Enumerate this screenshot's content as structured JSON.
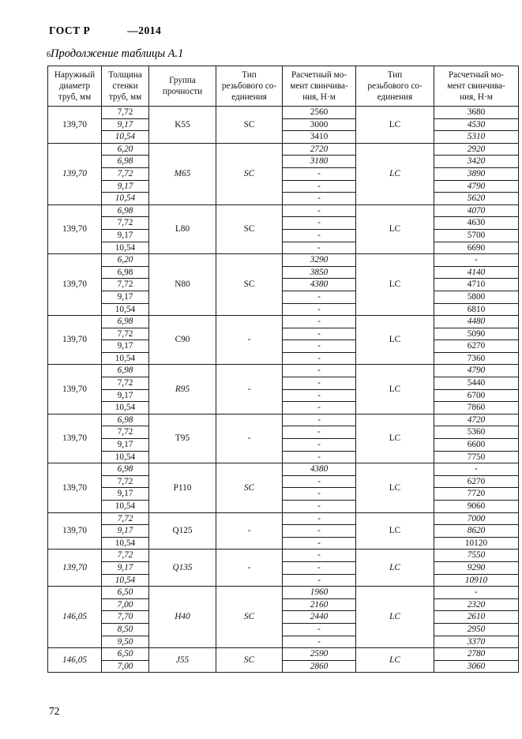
{
  "page": {
    "gost_label": "ГОСТ Р",
    "year_label": "—2014",
    "table_caption_prefix": "6",
    "table_caption": "Продолжение таблицы А.1",
    "page_number": "72"
  },
  "table": {
    "headers": [
      "Наружный\nдиаметр\nтруб, мм",
      "Толщина\nстенки\nтруб, мм",
      "Группа\nпрочности",
      "Тип\nрезьбового со-\nединения",
      "Расчетный мо-\nмент свинчива-\nния, Н·м",
      "Тип\nрезьбового со-\nединения",
      "Расчетный мо-\nмент свинчива-\nния, Н·м"
    ],
    "groups": [
      {
        "diameter": {
          "v": "139,70"
        },
        "grade": {
          "v": "K55"
        },
        "conn_type_sc": {
          "v": "SC"
        },
        "conn_type_lc": {
          "v": "LC"
        },
        "rows": [
          {
            "thickness": {
              "v": "7,72"
            },
            "torque_sc": {
              "v": "2560"
            },
            "torque_lc": {
              "v": "3680"
            }
          },
          {
            "thickness": {
              "v": "9,17",
              "i": 1
            },
            "torque_sc": {
              "v": "3000"
            },
            "torque_lc": {
              "v": "4530",
              "i": 1
            }
          },
          {
            "thickness": {
              "v": "10,54",
              "i": 1
            },
            "torque_sc": {
              "v": "3410"
            },
            "torque_lc": {
              "v": "5310",
              "i": 1
            }
          }
        ]
      },
      {
        "diameter": {
          "v": "139,70",
          "i": 1
        },
        "grade": {
          "v": "M65",
          "i": 1
        },
        "conn_type_sc": {
          "v": "SC",
          "i": 1
        },
        "conn_type_lc": {
          "v": "LC",
          "i": 1
        },
        "rows": [
          {
            "thickness": {
              "v": "6,20",
              "i": 1
            },
            "torque_sc": {
              "v": "2720",
              "i": 1
            },
            "torque_lc": {
              "v": "2920",
              "i": 1
            }
          },
          {
            "thickness": {
              "v": "6,98",
              "i": 1
            },
            "torque_sc": {
              "v": "3180",
              "i": 1
            },
            "torque_lc": {
              "v": "3420",
              "i": 1
            }
          },
          {
            "thickness": {
              "v": "7,72",
              "i": 1
            },
            "torque_sc": {
              "v": "-",
              "i": 1
            },
            "torque_lc": {
              "v": "3890",
              "i": 1
            }
          },
          {
            "thickness": {
              "v": "9,17",
              "i": 1
            },
            "torque_sc": {
              "v": "-",
              "i": 1
            },
            "torque_lc": {
              "v": "4790",
              "i": 1
            }
          },
          {
            "thickness": {
              "v": "10,54",
              "i": 1
            },
            "torque_sc": {
              "v": "-",
              "i": 1
            },
            "torque_lc": {
              "v": "5620",
              "i": 1
            }
          }
        ]
      },
      {
        "diameter": {
          "v": "139,70"
        },
        "grade": {
          "v": "L80"
        },
        "conn_type_sc": {
          "v": "SC"
        },
        "conn_type_lc": {
          "v": "LC"
        },
        "rows": [
          {
            "thickness": {
              "v": "6,98",
              "i": 1
            },
            "torque_sc": {
              "v": "-"
            },
            "torque_lc": {
              "v": "4070",
              "i": 1
            }
          },
          {
            "thickness": {
              "v": "7,72"
            },
            "torque_sc": {
              "v": "-"
            },
            "torque_lc": {
              "v": "4630"
            }
          },
          {
            "thickness": {
              "v": "9,17"
            },
            "torque_sc": {
              "v": "-"
            },
            "torque_lc": {
              "v": "5700"
            }
          },
          {
            "thickness": {
              "v": "10,54"
            },
            "torque_sc": {
              "v": "-"
            },
            "torque_lc": {
              "v": "6690"
            }
          }
        ]
      },
      {
        "diameter": {
          "v": "139,70"
        },
        "grade": {
          "v": "N80"
        },
        "conn_type_sc": {
          "v": "SC"
        },
        "conn_type_lc": {
          "v": "LC"
        },
        "rows": [
          {
            "thickness": {
              "v": "6,20",
              "i": 1
            },
            "torque_sc": {
              "v": "3290",
              "i": 1
            },
            "torque_lc": {
              "v": "-"
            }
          },
          {
            "thickness": {
              "v": "6,98"
            },
            "torque_sc": {
              "v": "3850",
              "i": 1
            },
            "torque_lc": {
              "v": "4140",
              "i": 1
            }
          },
          {
            "thickness": {
              "v": "7,72"
            },
            "torque_sc": {
              "v": "4380",
              "i": 1
            },
            "torque_lc": {
              "v": "4710"
            }
          },
          {
            "thickness": {
              "v": "9,17"
            },
            "torque_sc": {
              "v": "-"
            },
            "torque_lc": {
              "v": "5800"
            }
          },
          {
            "thickness": {
              "v": "10,54"
            },
            "torque_sc": {
              "v": "-"
            },
            "torque_lc": {
              "v": "6810"
            }
          }
        ]
      },
      {
        "diameter": {
          "v": "139,70"
        },
        "grade": {
          "v": "C90"
        },
        "conn_type_sc": {
          "v": "-"
        },
        "conn_type_lc": {
          "v": "LC"
        },
        "rows": [
          {
            "thickness": {
              "v": "6,98",
              "i": 1
            },
            "torque_sc": {
              "v": "-"
            },
            "torque_lc": {
              "v": "4480",
              "i": 1
            }
          },
          {
            "thickness": {
              "v": "7,72"
            },
            "torque_sc": {
              "v": "-"
            },
            "torque_lc": {
              "v": "5090"
            }
          },
          {
            "thickness": {
              "v": "9,17"
            },
            "torque_sc": {
              "v": "-"
            },
            "torque_lc": {
              "v": "6270"
            }
          },
          {
            "thickness": {
              "v": "10,54"
            },
            "torque_sc": {
              "v": "-"
            },
            "torque_lc": {
              "v": "7360"
            }
          }
        ]
      },
      {
        "diameter": {
          "v": "139,70"
        },
        "grade": {
          "v": "R95",
          "i": 1
        },
        "conn_type_sc": {
          "v": "-"
        },
        "conn_type_lc": {
          "v": "LC"
        },
        "rows": [
          {
            "thickness": {
              "v": "6,98",
              "i": 1
            },
            "torque_sc": {
              "v": "-"
            },
            "torque_lc": {
              "v": "4790",
              "i": 1
            }
          },
          {
            "thickness": {
              "v": "7,72"
            },
            "torque_sc": {
              "v": "-"
            },
            "torque_lc": {
              "v": "5440"
            }
          },
          {
            "thickness": {
              "v": "9,17"
            },
            "torque_sc": {
              "v": "-"
            },
            "torque_lc": {
              "v": "6700"
            }
          },
          {
            "thickness": {
              "v": "10,54"
            },
            "torque_sc": {
              "v": "-"
            },
            "torque_lc": {
              "v": "7860"
            }
          }
        ]
      },
      {
        "diameter": {
          "v": "139,70"
        },
        "grade": {
          "v": "T95"
        },
        "conn_type_sc": {
          "v": "-"
        },
        "conn_type_lc": {
          "v": "LC"
        },
        "rows": [
          {
            "thickness": {
              "v": "6,98",
              "i": 1
            },
            "torque_sc": {
              "v": "-"
            },
            "torque_lc": {
              "v": "4720",
              "i": 1
            }
          },
          {
            "thickness": {
              "v": "7,72"
            },
            "torque_sc": {
              "v": "-"
            },
            "torque_lc": {
              "v": "5360"
            }
          },
          {
            "thickness": {
              "v": "9,17"
            },
            "torque_sc": {
              "v": "-"
            },
            "torque_lc": {
              "v": "6600"
            }
          },
          {
            "thickness": {
              "v": "10,54"
            },
            "torque_sc": {
              "v": "-"
            },
            "torque_lc": {
              "v": "7750"
            }
          }
        ]
      },
      {
        "diameter": {
          "v": "139,70"
        },
        "grade": {
          "v": "P110"
        },
        "conn_type_sc": {
          "v": "SC",
          "i": 1
        },
        "conn_type_lc": {
          "v": "LC"
        },
        "rows": [
          {
            "thickness": {
              "v": "6,98",
              "i": 1
            },
            "torque_sc": {
              "v": "4380",
              "i": 1
            },
            "torque_lc": {
              "v": "-"
            }
          },
          {
            "thickness": {
              "v": "7,72"
            },
            "torque_sc": {
              "v": "-"
            },
            "torque_lc": {
              "v": "6270"
            }
          },
          {
            "thickness": {
              "v": "9,17"
            },
            "torque_sc": {
              "v": "-"
            },
            "torque_lc": {
              "v": "7720"
            }
          },
          {
            "thickness": {
              "v": "10,54"
            },
            "torque_sc": {
              "v": "-"
            },
            "torque_lc": {
              "v": "9060"
            }
          }
        ]
      },
      {
        "diameter": {
          "v": "139,70"
        },
        "grade": {
          "v": "Q125"
        },
        "conn_type_sc": {
          "v": "-"
        },
        "conn_type_lc": {
          "v": "LC"
        },
        "rows": [
          {
            "thickness": {
              "v": "7,72",
              "i": 1
            },
            "torque_sc": {
              "v": "-"
            },
            "torque_lc": {
              "v": "7000",
              "i": 1
            }
          },
          {
            "thickness": {
              "v": "9,17",
              "i": 1
            },
            "torque_sc": {
              "v": "-"
            },
            "torque_lc": {
              "v": "8620",
              "i": 1
            }
          },
          {
            "thickness": {
              "v": "10,54"
            },
            "torque_sc": {
              "v": "-"
            },
            "torque_lc": {
              "v": "10120"
            }
          }
        ]
      },
      {
        "diameter": {
          "v": "139,70",
          "i": 1
        },
        "grade": {
          "v": "Q135",
          "i": 1
        },
        "conn_type_sc": {
          "v": "-",
          "i": 1
        },
        "conn_type_lc": {
          "v": "LC",
          "i": 1
        },
        "rows": [
          {
            "thickness": {
              "v": "7,72",
              "i": 1
            },
            "torque_sc": {
              "v": "-",
              "i": 1
            },
            "torque_lc": {
              "v": "7550",
              "i": 1
            }
          },
          {
            "thickness": {
              "v": "9,17",
              "i": 1
            },
            "torque_sc": {
              "v": "-",
              "i": 1
            },
            "torque_lc": {
              "v": "9290",
              "i": 1
            }
          },
          {
            "thickness": {
              "v": "10,54",
              "i": 1
            },
            "torque_sc": {
              "v": "-",
              "i": 1
            },
            "torque_lc": {
              "v": "10910",
              "i": 1
            }
          }
        ]
      },
      {
        "diameter": {
          "v": "146,05",
          "i": 1
        },
        "grade": {
          "v": "H40",
          "i": 1
        },
        "conn_type_sc": {
          "v": "SC",
          "i": 1
        },
        "conn_type_lc": {
          "v": "LC",
          "i": 1
        },
        "rows": [
          {
            "thickness": {
              "v": "6,50",
              "i": 1
            },
            "torque_sc": {
              "v": "1960",
              "i": 1
            },
            "torque_lc": {
              "v": "-",
              "i": 1
            }
          },
          {
            "thickness": {
              "v": "7,00",
              "i": 1
            },
            "torque_sc": {
              "v": "2160",
              "i": 1
            },
            "torque_lc": {
              "v": "2320",
              "i": 1
            }
          },
          {
            "thickness": {
              "v": "7,70",
              "i": 1
            },
            "torque_sc": {
              "v": "2440",
              "i": 1
            },
            "torque_lc": {
              "v": "2610",
              "i": 1
            }
          },
          {
            "thickness": {
              "v": "8,50",
              "i": 1
            },
            "torque_sc": {
              "v": "-",
              "i": 1
            },
            "torque_lc": {
              "v": "2950",
              "i": 1
            }
          },
          {
            "thickness": {
              "v": "9,50",
              "i": 1
            },
            "torque_sc": {
              "v": "-",
              "i": 1
            },
            "torque_lc": {
              "v": "3370",
              "i": 1
            }
          }
        ]
      },
      {
        "diameter": {
          "v": "146,05",
          "i": 1
        },
        "grade": {
          "v": "J55",
          "i": 1
        },
        "conn_type_sc": {
          "v": "SC",
          "i": 1
        },
        "conn_type_lc": {
          "v": "LC",
          "i": 1
        },
        "rows": [
          {
            "thickness": {
              "v": "6,50",
              "i": 1
            },
            "torque_sc": {
              "v": "2590",
              "i": 1
            },
            "torque_lc": {
              "v": "2780",
              "i": 1
            }
          },
          {
            "thickness": {
              "v": "7,00",
              "i": 1
            },
            "torque_sc": {
              "v": "2860",
              "i": 1
            },
            "torque_lc": {
              "v": "3060",
              "i": 1
            }
          }
        ]
      }
    ]
  }
}
